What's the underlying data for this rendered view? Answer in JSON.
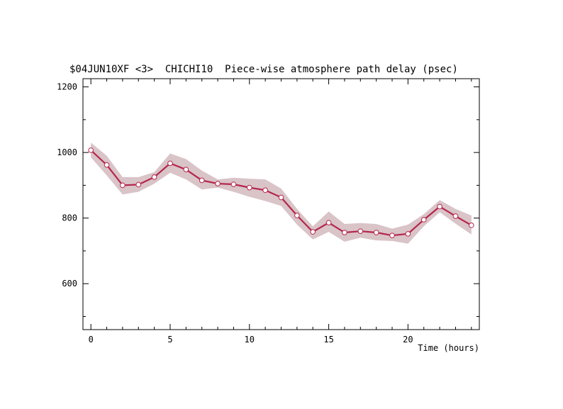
{
  "chart_data": {
    "type": "line",
    "title": "$04JUN10XF <3>  CHICHI10  Piece-wise atmosphere path delay (psec)",
    "xlabel": "Time (hours)",
    "ylabel": "",
    "xlim": [
      -0.5,
      24.5
    ],
    "ylim": [
      460,
      1225
    ],
    "x_ticks": [
      0,
      5,
      10,
      15,
      20
    ],
    "x_tick_labels": [
      "0",
      "5",
      "10",
      "15",
      "20"
    ],
    "y_ticks": [
      600,
      800,
      1000,
      1200
    ],
    "y_tick_labels": [
      "600",
      "800",
      "1000",
      "1200"
    ],
    "grid": false,
    "colors": {
      "line": "#b5264b",
      "band": "#d9c4c8",
      "marker_fill": "#ffffff",
      "axis": "#000000"
    },
    "series": [
      {
        "x": [
          0,
          1,
          2,
          3,
          4,
          5,
          6,
          7,
          8,
          9,
          10,
          11,
          12,
          13,
          14,
          15,
          16,
          17,
          18,
          19,
          20,
          21,
          22,
          23,
          24
        ],
        "values": [
          1007,
          962,
          900,
          902,
          925,
          967,
          948,
          915,
          905,
          903,
          893,
          885,
          863,
          808,
          758,
          786,
          756,
          760,
          756,
          747,
          752,
          795,
          835,
          806,
          778
        ],
        "band_upper": [
          1030,
          990,
          925,
          925,
          940,
          997,
          980,
          945,
          918,
          923,
          920,
          918,
          890,
          828,
          775,
          820,
          782,
          785,
          782,
          768,
          780,
          812,
          855,
          828,
          808
        ],
        "band_lower": [
          985,
          930,
          872,
          880,
          905,
          938,
          918,
          887,
          893,
          880,
          865,
          852,
          837,
          780,
          735,
          758,
          728,
          740,
          732,
          730,
          722,
          775,
          818,
          783,
          750
        ]
      }
    ]
  }
}
